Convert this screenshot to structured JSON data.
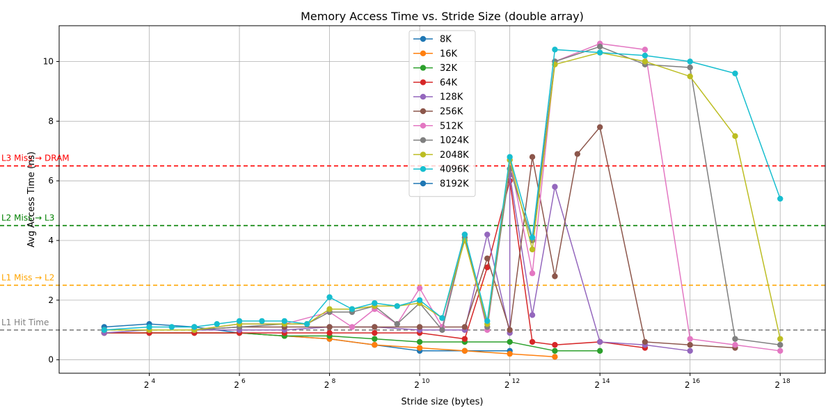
{
  "chart_data": {
    "type": "line",
    "title": "Memory Access Time vs. Stride Size (double array)",
    "xlabel": "Stride size (bytes)",
    "ylabel": "Avg Access Time (ns)",
    "x_scale": "log2",
    "xlim": [
      4,
      524288
    ],
    "ylim": [
      -0.45,
      11.2
    ],
    "x_ticks": [
      16,
      64,
      256,
      1024,
      4096,
      16384,
      65536,
      262144
    ],
    "x_tick_labels": [
      {
        "base": "2",
        "exp": "4"
      },
      {
        "base": "2",
        "exp": "6"
      },
      {
        "base": "2",
        "exp": "8"
      },
      {
        "base": "2",
        "exp": "10"
      },
      {
        "base": "2",
        "exp": "12"
      },
      {
        "base": "2",
        "exp": "14"
      },
      {
        "base": "2",
        "exp": "16"
      },
      {
        "base": "2",
        "exp": "18"
      }
    ],
    "y_ticks": [
      0,
      2,
      4,
      6,
      8,
      10
    ],
    "y_tick_labels": [
      "0",
      "2",
      "4",
      "6",
      "8",
      "10"
    ],
    "grid": true,
    "legend_position": "top-center",
    "reference_lines": [
      {
        "label": "L1 Hit Time",
        "y": 1.0,
        "color": "#808080"
      },
      {
        "label": "L1 Miss → L2",
        "y": 2.5,
        "color": "#ffa500"
      },
      {
        "label": "L2 Miss → L3",
        "y": 4.5,
        "color": "#008000"
      },
      {
        "label": "L3 Miss → DRAM",
        "y": 6.5,
        "color": "#ff0000"
      }
    ],
    "series": [
      {
        "name": "8K",
        "color": "#1f77b4",
        "points": [
          [
            8,
            1.1
          ],
          [
            16,
            1.2
          ],
          [
            32,
            1.1
          ],
          [
            64,
            0.9
          ],
          [
            128,
            0.8
          ],
          [
            256,
            0.7
          ],
          [
            512,
            0.5
          ],
          [
            1024,
            0.3
          ],
          [
            2048,
            0.3
          ],
          [
            4096,
            0.3
          ]
        ]
      },
      {
        "name": "16K",
        "color": "#ff7f0e",
        "points": [
          [
            8,
            0.9
          ],
          [
            16,
            0.9
          ],
          [
            32,
            0.9
          ],
          [
            64,
            0.9
          ],
          [
            128,
            0.8
          ],
          [
            256,
            0.7
          ],
          [
            512,
            0.5
          ],
          [
            1024,
            0.4
          ],
          [
            2048,
            0.3
          ],
          [
            4096,
            0.2
          ],
          [
            8192,
            0.1
          ]
        ]
      },
      {
        "name": "32K",
        "color": "#2ca02c",
        "points": [
          [
            8,
            0.9
          ],
          [
            16,
            0.9
          ],
          [
            32,
            0.9
          ],
          [
            64,
            0.9
          ],
          [
            128,
            0.8
          ],
          [
            256,
            0.8
          ],
          [
            512,
            0.7
          ],
          [
            1024,
            0.6
          ],
          [
            2048,
            0.6
          ],
          [
            4096,
            0.6
          ],
          [
            8192,
            0.3
          ],
          [
            16384,
            0.3
          ]
        ]
      },
      {
        "name": "64K",
        "color": "#d62728",
        "points": [
          [
            8,
            0.9
          ],
          [
            16,
            0.9
          ],
          [
            32,
            0.9
          ],
          [
            64,
            0.9
          ],
          [
            128,
            0.9
          ],
          [
            256,
            0.9
          ],
          [
            512,
            0.9
          ],
          [
            1024,
            0.9
          ],
          [
            2048,
            0.7
          ],
          [
            2896,
            3.1
          ],
          [
            4096,
            6.0
          ],
          [
            5793,
            0.6
          ],
          [
            8192,
            0.5
          ],
          [
            16384,
            0.6
          ],
          [
            32768,
            0.4
          ]
        ]
      },
      {
        "name": "128K",
        "color": "#9467bd",
        "points": [
          [
            8,
            0.9
          ],
          [
            16,
            1.0
          ],
          [
            32,
            1.0
          ],
          [
            64,
            1.0
          ],
          [
            128,
            1.0
          ],
          [
            256,
            1.1
          ],
          [
            512,
            1.1
          ],
          [
            1024,
            1.0
          ],
          [
            2048,
            1.0
          ],
          [
            2896,
            4.2
          ],
          [
            4096,
            0.9
          ],
          [
            4096,
            6.2
          ],
          [
            5793,
            1.5
          ],
          [
            8192,
            5.8
          ],
          [
            16384,
            0.6
          ],
          [
            32768,
            0.5
          ],
          [
            65536,
            0.3
          ]
        ]
      },
      {
        "name": "256K",
        "color": "#8c564b",
        "points": [
          [
            8,
            1.0
          ],
          [
            16,
            1.0
          ],
          [
            32,
            1.0
          ],
          [
            64,
            1.1
          ],
          [
            128,
            1.1
          ],
          [
            256,
            1.1
          ],
          [
            512,
            1.1
          ],
          [
            1024,
            1.1
          ],
          [
            1448,
            1.1
          ],
          [
            2048,
            1.1
          ],
          [
            2896,
            3.4
          ],
          [
            4096,
            1.0
          ],
          [
            5793,
            6.8
          ],
          [
            8192,
            2.8
          ],
          [
            11585,
            6.9
          ],
          [
            16384,
            7.8
          ],
          [
            32768,
            0.6
          ],
          [
            65536,
            0.5
          ],
          [
            131072,
            0.4
          ]
        ]
      },
      {
        "name": "512K",
        "color": "#e377c2",
        "points": [
          [
            8,
            1.0
          ],
          [
            16,
            1.0
          ],
          [
            32,
            1.0
          ],
          [
            64,
            1.2
          ],
          [
            128,
            1.2
          ],
          [
            256,
            1.6
          ],
          [
            362,
            1.1
          ],
          [
            512,
            1.7
          ],
          [
            724,
            1.2
          ],
          [
            1024,
            2.4
          ],
          [
            1448,
            1.1
          ],
          [
            2048,
            4.2
          ],
          [
            2896,
            1.0
          ],
          [
            4096,
            6.7
          ],
          [
            5793,
            2.9
          ],
          [
            8192,
            10.0
          ],
          [
            16384,
            10.6
          ],
          [
            32768,
            10.4
          ],
          [
            65536,
            0.7
          ],
          [
            131072,
            0.5
          ],
          [
            262144,
            0.3
          ]
        ]
      },
      {
        "name": "1024K",
        "color": "#7f7f7f",
        "points": [
          [
            8,
            1.0
          ],
          [
            16,
            1.0
          ],
          [
            32,
            1.0
          ],
          [
            64,
            1.1
          ],
          [
            128,
            1.2
          ],
          [
            181,
            1.2
          ],
          [
            256,
            1.6
          ],
          [
            362,
            1.6
          ],
          [
            512,
            1.8
          ],
          [
            724,
            1.2
          ],
          [
            1024,
            1.9
          ],
          [
            1448,
            1.0
          ],
          [
            2048,
            4.1
          ],
          [
            2896,
            1.1
          ],
          [
            4096,
            6.4
          ],
          [
            5793,
            4.0
          ],
          [
            8192,
            10.0
          ],
          [
            16384,
            10.5
          ],
          [
            32768,
            9.9
          ],
          [
            65536,
            9.8
          ],
          [
            131072,
            0.7
          ],
          [
            262144,
            0.5
          ]
        ]
      },
      {
        "name": "2048K",
        "color": "#bcbd22",
        "points": [
          [
            8,
            1.0
          ],
          [
            16,
            1.0
          ],
          [
            32,
            1.0
          ],
          [
            64,
            1.2
          ],
          [
            128,
            1.2
          ],
          [
            181,
            1.2
          ],
          [
            256,
            1.7
          ],
          [
            362,
            1.7
          ],
          [
            512,
            1.8
          ],
          [
            724,
            1.8
          ],
          [
            1024,
            1.9
          ],
          [
            1448,
            1.4
          ],
          [
            2048,
            4.0
          ],
          [
            2896,
            1.2
          ],
          [
            4096,
            6.7
          ],
          [
            5793,
            3.7
          ],
          [
            8192,
            9.9
          ],
          [
            16384,
            10.3
          ],
          [
            32768,
            10.0
          ],
          [
            65536,
            9.5
          ],
          [
            131072,
            7.5
          ],
          [
            262144,
            0.7
          ]
        ]
      },
      {
        "name": "4096K",
        "color": "#17becf",
        "points": [
          [
            8,
            1.0
          ],
          [
            16,
            1.1
          ],
          [
            22.6,
            1.1
          ],
          [
            32,
            1.1
          ],
          [
            45.3,
            1.2
          ],
          [
            64,
            1.3
          ],
          [
            90.5,
            1.3
          ],
          [
            128,
            1.3
          ],
          [
            181,
            1.2
          ],
          [
            256,
            2.1
          ],
          [
            362,
            1.7
          ],
          [
            512,
            1.9
          ],
          [
            724,
            1.8
          ],
          [
            1024,
            2.0
          ],
          [
            1448,
            1.4
          ],
          [
            2048,
            4.2
          ],
          [
            2896,
            1.3
          ],
          [
            4096,
            6.8
          ],
          [
            5793,
            4.1
          ],
          [
            8192,
            10.4
          ],
          [
            16384,
            10.3
          ],
          [
            32768,
            10.2
          ],
          [
            65536,
            10.0
          ],
          [
            131072,
            9.6
          ],
          [
            262144,
            5.4
          ]
        ]
      },
      {
        "name": "8192K",
        "color": "#1f77b4",
        "points": []
      }
    ]
  }
}
